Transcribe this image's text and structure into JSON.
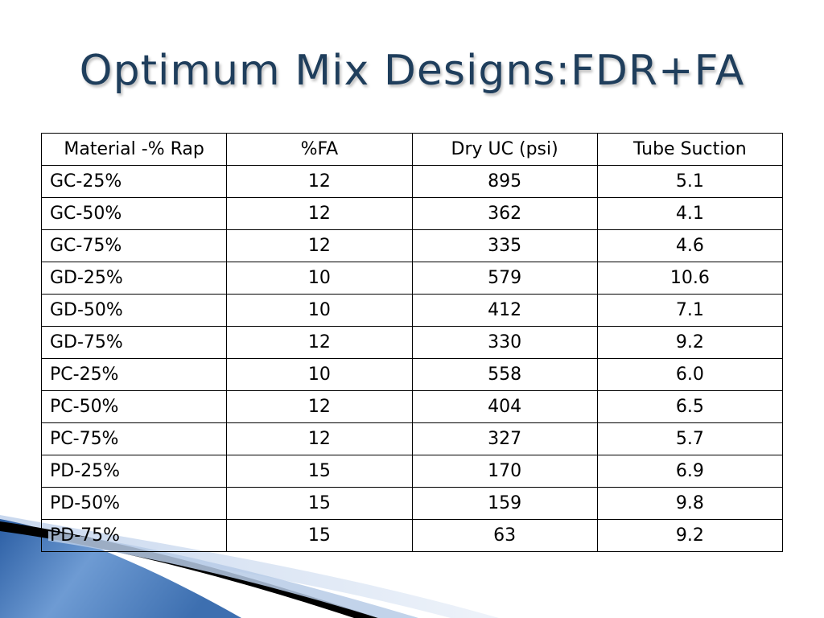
{
  "slide": {
    "title": "Optimum Mix Designs:FDR+FA"
  },
  "table": {
    "headers": [
      "Material -% Rap",
      "%FA",
      "Dry UC (psi)",
      "Tube Suction"
    ],
    "rows": [
      [
        "GC-25%",
        "12",
        "895",
        "5.1"
      ],
      [
        "GC-50%",
        "12",
        "362",
        "4.1"
      ],
      [
        "GC-75%",
        "12",
        "335",
        "4.6"
      ],
      [
        "GD-25%",
        "10",
        "579",
        "10.6"
      ],
      [
        "GD-50%",
        "10",
        "412",
        "7.1"
      ],
      [
        "GD-75%",
        "12",
        "330",
        "9.2"
      ],
      [
        "PC-25%",
        "10",
        "558",
        "6.0"
      ],
      [
        "PC-50%",
        "12",
        "404",
        "6.5"
      ],
      [
        "PC-75%",
        "12",
        "327",
        "5.7"
      ],
      [
        "PD-25%",
        "15",
        "170",
        "6.9"
      ],
      [
        "PD-50%",
        "15",
        "159",
        "9.8"
      ],
      [
        "PD-75%",
        "15",
        "63",
        "9.2"
      ]
    ]
  },
  "colors": {
    "title": "#1f3e5c",
    "wave_dark": "#1f4f8f",
    "wave_light": "#7ea6d8",
    "wave_black": "#000000"
  }
}
